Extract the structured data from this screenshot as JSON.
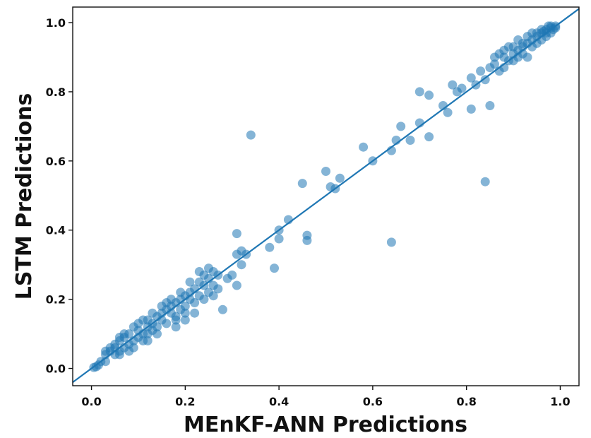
{
  "chart_data": {
    "type": "scatter",
    "title": "",
    "xlabel": "MEnKF-ANN Predictions",
    "ylabel": "LSTM Predictions",
    "xlim": [
      -0.04,
      1.04
    ],
    "ylim": [
      -0.05,
      1.045
    ],
    "xticks": [
      "0.0",
      "0.2",
      "0.4",
      "0.6",
      "0.8",
      "1.0"
    ],
    "yticks": [
      "0.0",
      "0.2",
      "0.4",
      "0.6",
      "0.8",
      "1.0"
    ],
    "grid": false,
    "legend": "none",
    "point_color": "#1f77b4",
    "line_color": "#1f77b4",
    "reference_line": {
      "from": [
        -0.04,
        -0.04
      ],
      "to": [
        1.04,
        1.04
      ]
    },
    "points": [
      [
        0.01,
        0.005
      ],
      [
        0.015,
        0.01
      ],
      [
        0.005,
        0.003
      ],
      [
        0.02,
        0.02
      ],
      [
        0.03,
        0.02
      ],
      [
        0.03,
        0.04
      ],
      [
        0.04,
        0.06
      ],
      [
        0.04,
        0.05
      ],
      [
        0.05,
        0.06
      ],
      [
        0.05,
        0.07
      ],
      [
        0.06,
        0.05
      ],
      [
        0.06,
        0.08
      ],
      [
        0.07,
        0.06
      ],
      [
        0.07,
        0.09
      ],
      [
        0.08,
        0.07
      ],
      [
        0.08,
        0.1
      ],
      [
        0.09,
        0.08
      ],
      [
        0.09,
        0.06
      ],
      [
        0.1,
        0.09
      ],
      [
        0.1,
        0.11
      ],
      [
        0.11,
        0.1
      ],
      [
        0.11,
        0.08
      ],
      [
        0.12,
        0.12
      ],
      [
        0.12,
        0.1
      ],
      [
        0.13,
        0.13
      ],
      [
        0.13,
        0.11
      ],
      [
        0.14,
        0.15
      ],
      [
        0.14,
        0.12
      ],
      [
        0.15,
        0.14
      ],
      [
        0.15,
        0.16
      ],
      [
        0.16,
        0.17
      ],
      [
        0.16,
        0.13
      ],
      [
        0.17,
        0.18
      ],
      [
        0.17,
        0.16
      ],
      [
        0.18,
        0.19
      ],
      [
        0.18,
        0.15
      ],
      [
        0.19,
        0.2
      ],
      [
        0.19,
        0.17
      ],
      [
        0.2,
        0.21
      ],
      [
        0.2,
        0.18
      ],
      [
        0.21,
        0.22
      ],
      [
        0.21,
        0.2
      ],
      [
        0.22,
        0.23
      ],
      [
        0.22,
        0.19
      ],
      [
        0.23,
        0.25
      ],
      [
        0.23,
        0.21
      ],
      [
        0.24,
        0.24
      ],
      [
        0.24,
        0.27
      ],
      [
        0.25,
        0.22
      ],
      [
        0.25,
        0.26
      ],
      [
        0.26,
        0.28
      ],
      [
        0.26,
        0.24
      ],
      [
        0.27,
        0.23
      ],
      [
        0.28,
        0.17
      ],
      [
        0.29,
        0.26
      ],
      [
        0.3,
        0.27
      ],
      [
        0.31,
        0.24
      ],
      [
        0.31,
        0.33
      ],
      [
        0.31,
        0.39
      ],
      [
        0.32,
        0.34
      ],
      [
        0.32,
        0.3
      ],
      [
        0.33,
        0.33
      ],
      [
        0.34,
        0.675
      ],
      [
        0.38,
        0.35
      ],
      [
        0.39,
        0.29
      ],
      [
        0.4,
        0.375
      ],
      [
        0.4,
        0.4
      ],
      [
        0.42,
        0.43
      ],
      [
        0.45,
        0.535
      ],
      [
        0.46,
        0.37
      ],
      [
        0.46,
        0.385
      ],
      [
        0.5,
        0.57
      ],
      [
        0.51,
        0.525
      ],
      [
        0.52,
        0.52
      ],
      [
        0.53,
        0.55
      ],
      [
        0.58,
        0.64
      ],
      [
        0.6,
        0.6
      ],
      [
        0.64,
        0.63
      ],
      [
        0.65,
        0.66
      ],
      [
        0.64,
        0.365
      ],
      [
        0.66,
        0.7
      ],
      [
        0.68,
        0.66
      ],
      [
        0.7,
        0.71
      ],
      [
        0.72,
        0.67
      ],
      [
        0.7,
        0.8
      ],
      [
        0.72,
        0.79
      ],
      [
        0.75,
        0.76
      ],
      [
        0.76,
        0.74
      ],
      [
        0.77,
        0.82
      ],
      [
        0.79,
        0.81
      ],
      [
        0.81,
        0.84
      ],
      [
        0.82,
        0.82
      ],
      [
        0.83,
        0.86
      ],
      [
        0.84,
        0.835
      ],
      [
        0.84,
        0.54
      ],
      [
        0.85,
        0.87
      ],
      [
        0.85,
        0.76
      ],
      [
        0.86,
        0.88
      ],
      [
        0.87,
        0.86
      ],
      [
        0.88,
        0.9
      ],
      [
        0.88,
        0.92
      ],
      [
        0.89,
        0.89
      ],
      [
        0.9,
        0.93
      ],
      [
        0.9,
        0.91
      ],
      [
        0.91,
        0.92
      ],
      [
        0.91,
        0.95
      ],
      [
        0.92,
        0.93
      ],
      [
        0.92,
        0.94
      ],
      [
        0.93,
        0.96
      ],
      [
        0.93,
        0.9
      ],
      [
        0.94,
        0.95
      ],
      [
        0.94,
        0.97
      ],
      [
        0.95,
        0.96
      ],
      [
        0.95,
        0.94
      ],
      [
        0.96,
        0.97
      ],
      [
        0.96,
        0.98
      ],
      [
        0.97,
        0.98
      ],
      [
        0.97,
        0.96
      ],
      [
        0.98,
        0.99
      ],
      [
        0.98,
        0.985
      ],
      [
        0.99,
        0.99
      ],
      [
        0.985,
        0.98
      ],
      [
        0.975,
        0.99
      ],
      [
        0.965,
        0.975
      ],
      [
        0.1,
        0.13
      ],
      [
        0.12,
        0.08
      ],
      [
        0.06,
        0.04
      ],
      [
        0.08,
        0.05
      ],
      [
        0.14,
        0.1
      ],
      [
        0.18,
        0.12
      ],
      [
        0.2,
        0.16
      ],
      [
        0.22,
        0.16
      ],
      [
        0.24,
        0.2
      ],
      [
        0.26,
        0.21
      ],
      [
        0.16,
        0.19
      ],
      [
        0.07,
        0.1
      ],
      [
        0.09,
        0.12
      ],
      [
        0.11,
        0.14
      ],
      [
        0.13,
        0.16
      ],
      [
        0.15,
        0.18
      ],
      [
        0.17,
        0.2
      ],
      [
        0.19,
        0.22
      ],
      [
        0.21,
        0.25
      ],
      [
        0.23,
        0.28
      ],
      [
        0.25,
        0.29
      ],
      [
        0.27,
        0.27
      ],
      [
        0.18,
        0.14
      ],
      [
        0.2,
        0.14
      ],
      [
        0.12,
        0.14
      ],
      [
        0.06,
        0.09
      ],
      [
        0.05,
        0.04
      ],
      [
        0.03,
        0.05
      ],
      [
        0.86,
        0.9
      ],
      [
        0.87,
        0.91
      ],
      [
        0.88,
        0.87
      ],
      [
        0.89,
        0.93
      ],
      [
        0.9,
        0.89
      ],
      [
        0.91,
        0.9
      ],
      [
        0.92,
        0.91
      ],
      [
        0.93,
        0.94
      ],
      [
        0.94,
        0.93
      ],
      [
        0.95,
        0.97
      ],
      [
        0.96,
        0.95
      ],
      [
        0.97,
        0.97
      ],
      [
        0.98,
        0.97
      ],
      [
        0.99,
        0.985
      ],
      [
        0.81,
        0.75
      ],
      [
        0.78,
        0.8
      ]
    ]
  }
}
